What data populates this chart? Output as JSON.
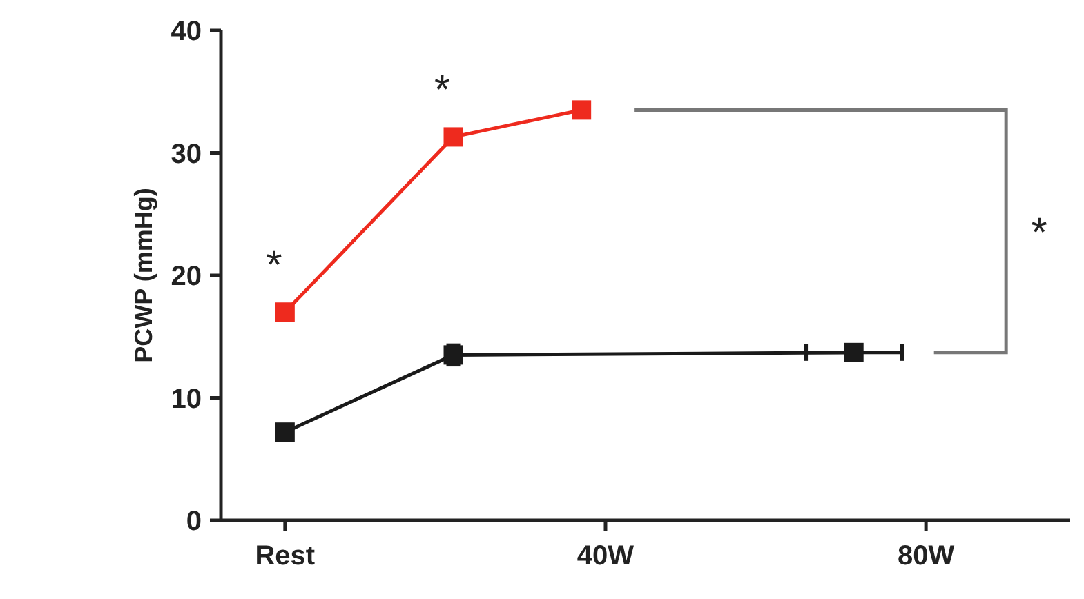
{
  "chart_data": {
    "type": "line",
    "ylabel": "PCWP (mmHg)",
    "xlim": [
      -8,
      98
    ],
    "ylim": [
      0,
      40
    ],
    "yticks": [
      0,
      10,
      20,
      30,
      40
    ],
    "xticks": [
      {
        "value": 0,
        "label": "Rest"
      },
      {
        "value": 40,
        "label": "40W"
      },
      {
        "value": 80,
        "label": "80W"
      }
    ],
    "grid": false,
    "marker": "square",
    "line_style": "solid",
    "series": [
      {
        "color": "#ee2a1e",
        "x": [
          0,
          21,
          37
        ],
        "values": [
          17,
          31.3,
          33.5
        ]
      },
      {
        "color": "#1a1a1a",
        "x": [
          0,
          21,
          71
        ],
        "values": [
          7.2,
          13.5,
          13.7
        ],
        "errors": [
          null,
          0.8,
          null
        ],
        "xerrors": [
          null,
          null,
          [
            65,
            77
          ]
        ]
      }
    ],
    "annotations": [
      "*",
      "*",
      "*"
    ]
  }
}
